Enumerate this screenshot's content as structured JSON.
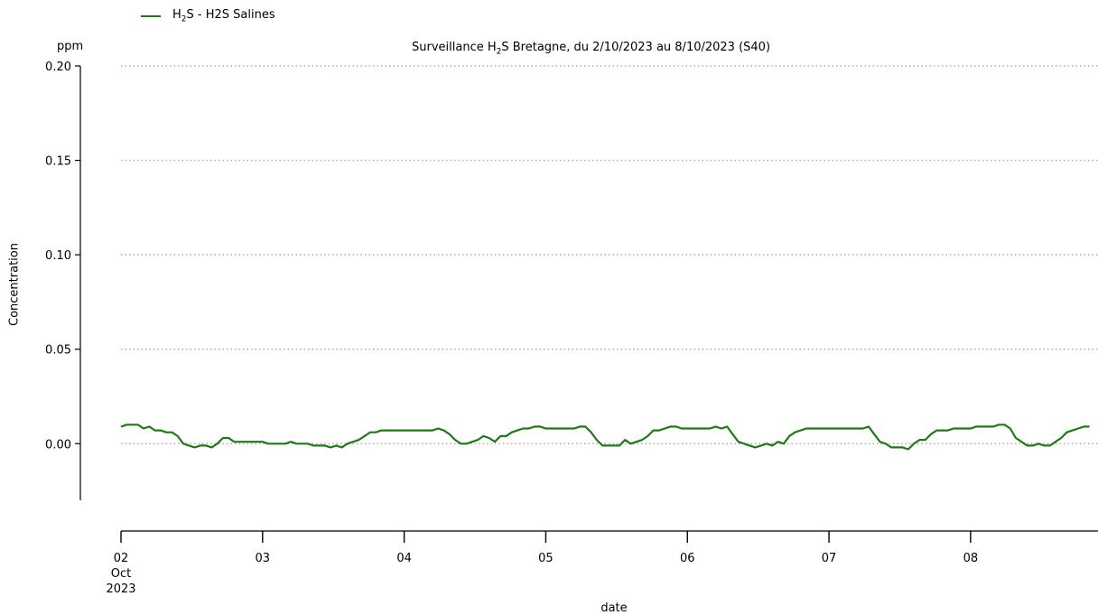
{
  "chart_data": {
    "type": "line",
    "title_prefix": "Surveillance H",
    "title_sub": "2",
    "title_suffix": "S Bretagne, du 2/10/2023 au 8/10/2023 (S40)",
    "unit_label": "ppm",
    "ylabel": "Concentration",
    "xlabel": "date",
    "ylim": [
      -0.03,
      0.2
    ],
    "yticks": [
      0.0,
      0.05,
      0.1,
      0.15,
      0.2
    ],
    "ytick_labels": [
      "0.00",
      "0.05",
      "0.10",
      "0.15",
      "0.20"
    ],
    "xlim": [
      0,
      6.9
    ],
    "xticks": [
      0,
      1,
      2,
      3,
      4,
      5,
      6
    ],
    "xtick_labels": [
      "02",
      "03",
      "04",
      "05",
      "06",
      "07",
      "08"
    ],
    "x_first_tick_extra": [
      "Oct",
      "2023"
    ],
    "grid": "horizontal dotted",
    "legend_position": "top-left",
    "legend": {
      "prefix": "H",
      "sub": "2",
      "suffix": "S - H2S Salines"
    },
    "series": [
      {
        "name": "H2S - H2S Salines",
        "color": "#1e7a14",
        "points": [
          [
            0.0,
            0.009
          ],
          [
            0.04,
            0.01
          ],
          [
            0.08,
            0.01
          ],
          [
            0.12,
            0.01
          ],
          [
            0.16,
            0.008
          ],
          [
            0.2,
            0.009
          ],
          [
            0.24,
            0.007
          ],
          [
            0.28,
            0.007
          ],
          [
            0.32,
            0.006
          ],
          [
            0.36,
            0.006
          ],
          [
            0.4,
            0.004
          ],
          [
            0.44,
            0.0
          ],
          [
            0.48,
            -0.001
          ],
          [
            0.52,
            -0.002
          ],
          [
            0.56,
            -0.001
          ],
          [
            0.6,
            -0.001
          ],
          [
            0.64,
            -0.002
          ],
          [
            0.68,
            0.0
          ],
          [
            0.72,
            0.003
          ],
          [
            0.76,
            0.003
          ],
          [
            0.8,
            0.001
          ],
          [
            0.84,
            0.001
          ],
          [
            0.88,
            0.001
          ],
          [
            0.92,
            0.001
          ],
          [
            0.96,
            0.001
          ],
          [
            1.0,
            0.001
          ],
          [
            1.04,
            0.0
          ],
          [
            1.08,
            0.0
          ],
          [
            1.12,
            0.0
          ],
          [
            1.16,
            0.0
          ],
          [
            1.2,
            0.001
          ],
          [
            1.24,
            0.0
          ],
          [
            1.28,
            0.0
          ],
          [
            1.32,
            0.0
          ],
          [
            1.36,
            -0.001
          ],
          [
            1.4,
            -0.001
          ],
          [
            1.44,
            -0.001
          ],
          [
            1.48,
            -0.002
          ],
          [
            1.52,
            -0.001
          ],
          [
            1.56,
            -0.002
          ],
          [
            1.6,
            0.0
          ],
          [
            1.64,
            0.001
          ],
          [
            1.68,
            0.002
          ],
          [
            1.72,
            0.004
          ],
          [
            1.76,
            0.006
          ],
          [
            1.8,
            0.006
          ],
          [
            1.84,
            0.007
          ],
          [
            1.88,
            0.007
          ],
          [
            1.92,
            0.007
          ],
          [
            1.96,
            0.007
          ],
          [
            2.0,
            0.007
          ],
          [
            2.04,
            0.007
          ],
          [
            2.08,
            0.007
          ],
          [
            2.12,
            0.007
          ],
          [
            2.16,
            0.007
          ],
          [
            2.2,
            0.007
          ],
          [
            2.24,
            0.008
          ],
          [
            2.28,
            0.007
          ],
          [
            2.32,
            0.005
          ],
          [
            2.36,
            0.002
          ],
          [
            2.4,
            0.0
          ],
          [
            2.44,
            0.0
          ],
          [
            2.48,
            0.001
          ],
          [
            2.52,
            0.002
          ],
          [
            2.56,
            0.004
          ],
          [
            2.6,
            0.003
          ],
          [
            2.64,
            0.001
          ],
          [
            2.68,
            0.004
          ],
          [
            2.72,
            0.004
          ],
          [
            2.76,
            0.006
          ],
          [
            2.8,
            0.007
          ],
          [
            2.84,
            0.008
          ],
          [
            2.88,
            0.008
          ],
          [
            2.92,
            0.009
          ],
          [
            2.96,
            0.009
          ],
          [
            3.0,
            0.008
          ],
          [
            3.04,
            0.008
          ],
          [
            3.08,
            0.008
          ],
          [
            3.12,
            0.008
          ],
          [
            3.16,
            0.008
          ],
          [
            3.2,
            0.008
          ],
          [
            3.24,
            0.009
          ],
          [
            3.28,
            0.009
          ],
          [
            3.32,
            0.006
          ],
          [
            3.36,
            0.002
          ],
          [
            3.4,
            -0.001
          ],
          [
            3.44,
            -0.001
          ],
          [
            3.48,
            -0.001
          ],
          [
            3.52,
            -0.001
          ],
          [
            3.56,
            0.002
          ],
          [
            3.6,
            0.0
          ],
          [
            3.64,
            0.001
          ],
          [
            3.68,
            0.002
          ],
          [
            3.72,
            0.004
          ],
          [
            3.76,
            0.007
          ],
          [
            3.8,
            0.007
          ],
          [
            3.84,
            0.008
          ],
          [
            3.88,
            0.009
          ],
          [
            3.92,
            0.009
          ],
          [
            3.96,
            0.008
          ],
          [
            4.0,
            0.008
          ],
          [
            4.04,
            0.008
          ],
          [
            4.08,
            0.008
          ],
          [
            4.12,
            0.008
          ],
          [
            4.16,
            0.008
          ],
          [
            4.2,
            0.009
          ],
          [
            4.24,
            0.008
          ],
          [
            4.28,
            0.009
          ],
          [
            4.32,
            0.005
          ],
          [
            4.36,
            0.001
          ],
          [
            4.4,
            0.0
          ],
          [
            4.44,
            -0.001
          ],
          [
            4.48,
            -0.002
          ],
          [
            4.52,
            -0.001
          ],
          [
            4.56,
            0.0
          ],
          [
            4.6,
            -0.001
          ],
          [
            4.64,
            0.001
          ],
          [
            4.68,
            0.0
          ],
          [
            4.72,
            0.004
          ],
          [
            4.76,
            0.006
          ],
          [
            4.8,
            0.007
          ],
          [
            4.84,
            0.008
          ],
          [
            4.88,
            0.008
          ],
          [
            4.92,
            0.008
          ],
          [
            4.96,
            0.008
          ],
          [
            5.0,
            0.008
          ],
          [
            5.04,
            0.008
          ],
          [
            5.08,
            0.008
          ],
          [
            5.12,
            0.008
          ],
          [
            5.16,
            0.008
          ],
          [
            5.2,
            0.008
          ],
          [
            5.24,
            0.008
          ],
          [
            5.28,
            0.009
          ],
          [
            5.32,
            0.005
          ],
          [
            5.36,
            0.001
          ],
          [
            5.4,
            0.0
          ],
          [
            5.44,
            -0.002
          ],
          [
            5.48,
            -0.002
          ],
          [
            5.52,
            -0.002
          ],
          [
            5.56,
            -0.003
          ],
          [
            5.6,
            0.0
          ],
          [
            5.64,
            0.002
          ],
          [
            5.68,
            0.002
          ],
          [
            5.72,
            0.005
          ],
          [
            5.76,
            0.007
          ],
          [
            5.8,
            0.007
          ],
          [
            5.84,
            0.007
          ],
          [
            5.88,
            0.008
          ],
          [
            5.92,
            0.008
          ],
          [
            5.96,
            0.008
          ],
          [
            6.0,
            0.008
          ],
          [
            6.04,
            0.009
          ],
          [
            6.08,
            0.009
          ],
          [
            6.12,
            0.009
          ],
          [
            6.16,
            0.009
          ],
          [
            6.2,
            0.01
          ],
          [
            6.24,
            0.01
          ],
          [
            6.28,
            0.008
          ],
          [
            6.32,
            0.003
          ],
          [
            6.36,
            0.001
          ],
          [
            6.4,
            -0.001
          ],
          [
            6.44,
            -0.001
          ],
          [
            6.48,
            0.0
          ],
          [
            6.52,
            -0.001
          ],
          [
            6.56,
            -0.001
          ],
          [
            6.6,
            0.001
          ],
          [
            6.64,
            0.003
          ],
          [
            6.68,
            0.006
          ],
          [
            6.72,
            0.007
          ],
          [
            6.76,
            0.008
          ],
          [
            6.8,
            0.009
          ],
          [
            6.84,
            0.009
          ]
        ]
      }
    ]
  }
}
